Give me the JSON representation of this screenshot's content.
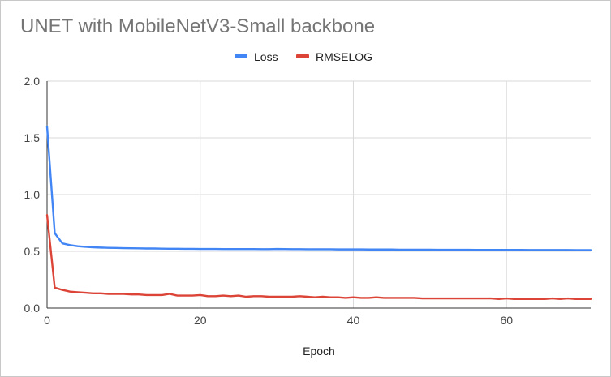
{
  "chart_data": {
    "type": "line",
    "title": "UNET with MobileNetV3-Small backbone",
    "xlabel": "Epoch",
    "ylabel": "",
    "xlim": [
      0,
      71
    ],
    "ylim": [
      0,
      2.0
    ],
    "x_ticks": [
      0,
      20,
      40,
      60
    ],
    "x_tick_labels": [
      "0",
      "20",
      "40",
      "60"
    ],
    "y_ticks": [
      0,
      0.5,
      1.0,
      1.5,
      2.0
    ],
    "y_tick_labels": [
      "0.0",
      "0.5",
      "1.0",
      "1.5",
      "2.0"
    ],
    "grid": true,
    "legend_position": "top",
    "x": [
      0,
      1,
      2,
      3,
      4,
      5,
      6,
      7,
      8,
      9,
      10,
      11,
      12,
      13,
      14,
      15,
      16,
      17,
      18,
      19,
      20,
      21,
      22,
      23,
      24,
      25,
      26,
      27,
      28,
      29,
      30,
      31,
      32,
      33,
      34,
      35,
      36,
      37,
      38,
      39,
      40,
      41,
      42,
      43,
      44,
      45,
      46,
      47,
      48,
      49,
      50,
      51,
      52,
      53,
      54,
      55,
      56,
      57,
      58,
      59,
      60,
      61,
      62,
      63,
      64,
      65,
      66,
      67,
      68,
      69,
      70,
      71
    ],
    "series": [
      {
        "name": "Loss",
        "color": "#4285f4",
        "values": [
          1.6,
          0.66,
          0.57,
          0.555,
          0.545,
          0.54,
          0.535,
          0.533,
          0.531,
          0.53,
          0.528,
          0.527,
          0.526,
          0.525,
          0.525,
          0.524,
          0.523,
          0.523,
          0.522,
          0.522,
          0.521,
          0.521,
          0.521,
          0.52,
          0.52,
          0.52,
          0.52,
          0.52,
          0.519,
          0.519,
          0.521,
          0.52,
          0.519,
          0.519,
          0.518,
          0.518,
          0.518,
          0.518,
          0.517,
          0.517,
          0.517,
          0.517,
          0.516,
          0.516,
          0.516,
          0.516,
          0.515,
          0.515,
          0.515,
          0.515,
          0.515,
          0.514,
          0.514,
          0.514,
          0.514,
          0.514,
          0.513,
          0.513,
          0.513,
          0.513,
          0.513,
          0.513,
          0.513,
          0.512,
          0.512,
          0.512,
          0.512,
          0.512,
          0.512,
          0.511,
          0.511,
          0.511
        ]
      },
      {
        "name": "RMSELOG",
        "color": "#db4437",
        "values": [
          0.82,
          0.18,
          0.16,
          0.145,
          0.14,
          0.135,
          0.13,
          0.13,
          0.125,
          0.125,
          0.125,
          0.12,
          0.12,
          0.115,
          0.115,
          0.115,
          0.125,
          0.11,
          0.11,
          0.11,
          0.115,
          0.105,
          0.105,
          0.11,
          0.105,
          0.11,
          0.1,
          0.105,
          0.105,
          0.1,
          0.1,
          0.1,
          0.1,
          0.105,
          0.1,
          0.095,
          0.1,
          0.095,
          0.095,
          0.09,
          0.095,
          0.09,
          0.09,
          0.095,
          0.09,
          0.09,
          0.09,
          0.09,
          0.09,
          0.085,
          0.085,
          0.085,
          0.085,
          0.085,
          0.085,
          0.085,
          0.085,
          0.085,
          0.085,
          0.08,
          0.085,
          0.08,
          0.08,
          0.08,
          0.08,
          0.08,
          0.085,
          0.08,
          0.085,
          0.08,
          0.08,
          0.08
        ]
      }
    ]
  }
}
